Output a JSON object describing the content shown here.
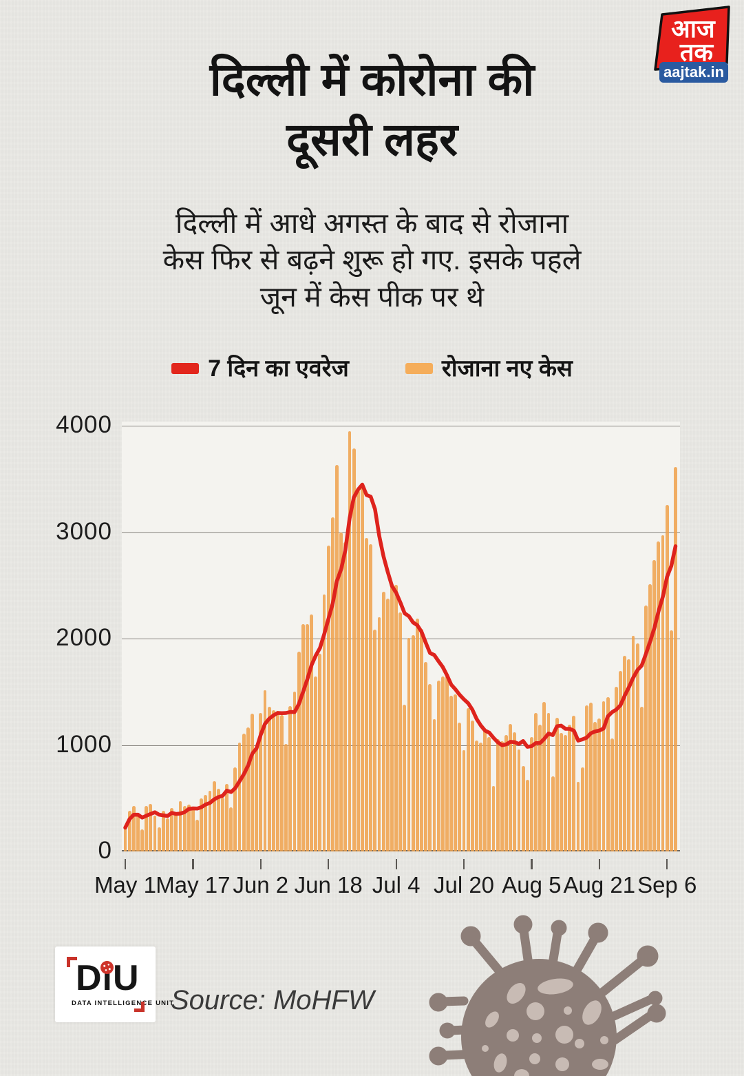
{
  "brand": {
    "logo_line1": "आज",
    "logo_line2": "तक",
    "site_label": "aajtak.in",
    "red": "#e8211d",
    "blue": "#2a5aa0"
  },
  "header": {
    "title": "दिल्ली में कोरोना की\nदूसरी लहर",
    "subtitle": "दिल्ली में आधे अगस्त के बाद से रोजाना\nकेस फिर से बढ़ने शुरू हो गए. इसके पहले\nजून में केस पीक पर थे"
  },
  "legend": {
    "line_label": "7 दिन का एवरेज",
    "bar_label": "रोजाना नए केस",
    "line_color": "#e2261c",
    "bar_color": "#f5ad5a"
  },
  "chart_data": {
    "type": "bar",
    "description": "Daily new COVID-19 cases in Delhi (orange bars) with 7-day average overlay line (red), May 1 - Sep 8, 2020",
    "x_start_label": "May 1",
    "x_ticks": [
      {
        "label": "May 1",
        "day": 0
      },
      {
        "label": "May 17",
        "day": 16
      },
      {
        "label": "Jun 2",
        "day": 32
      },
      {
        "label": "Jun 18",
        "day": 48
      },
      {
        "label": "Jul 4",
        "day": 64
      },
      {
        "label": "Jul 20",
        "day": 80
      },
      {
        "label": "Aug 5",
        "day": 96
      },
      {
        "label": "Aug 21",
        "day": 112
      },
      {
        "label": "Sep 6",
        "day": 128
      }
    ],
    "ylim": [
      0,
      4000
    ],
    "y_ticks": [
      0,
      1000,
      2000,
      3000,
      4000
    ],
    "grid": true,
    "legend_position": "top",
    "series": [
      {
        "name": "रोजाना नए केस",
        "type": "bar",
        "color": "#efa04a",
        "values": [
          223,
          384,
          427,
          349,
          206,
          428,
          448,
          338,
          224,
          381,
          310,
          406,
          359,
          472,
          425,
          438,
          422,
          299,
          500,
          534,
          571,
          660,
          591,
          508,
          635,
          412,
          792,
          1024,
          1106,
          1163,
          1295,
          990,
          1298,
          1513,
          1359,
          1330,
          1320,
          1282,
          1007,
          1366,
          1501,
          1877,
          2137,
          2134,
          2224,
          1647,
          1859,
          2414,
          2877,
          3137,
          3630,
          3000,
          2909,
          3947,
          3788,
          3390,
          3460,
          2948,
          2889,
          2084,
          2199,
          2442,
          2373,
          2520,
          2505,
          2244,
          1379,
          2008,
          2033,
          2187,
          2089,
          1781,
          1573,
          1246,
          1606,
          1647,
          1652,
          1462,
          1475,
          1211,
          954,
          1349,
          1227,
          1041,
          1025,
          1142,
          1075,
          613,
          1056,
          1035,
          1093,
          1195,
          1118,
          961,
          805,
          674,
          1076,
          1299,
          1192,
          1404,
          1300,
          707,
          1257,
          1113,
          1093,
          1192,
          1276,
          652,
          787,
          1374,
          1398,
          1215,
          1250,
          1412,
          1450,
          1061,
          1544,
          1693,
          1840,
          1808,
          2024,
          1954,
          1358,
          2312,
          2509,
          2737,
          2914,
          2973,
          3256,
          2077,
          3609
        ]
      },
      {
        "name": "7 दिन का एवरेज",
        "type": "line",
        "color": "#de231d",
        "derived": "trailing 7-day rolling average of the bar series"
      }
    ]
  },
  "axis": {
    "y_tick_labels": [
      "0",
      "1000",
      "2000",
      "3000",
      "4000"
    ]
  },
  "footer": {
    "diu_name": "DiU",
    "diu_tagline": "DATA INTELLIGENCE UNIT",
    "source_label": "Source: MoHFW"
  }
}
